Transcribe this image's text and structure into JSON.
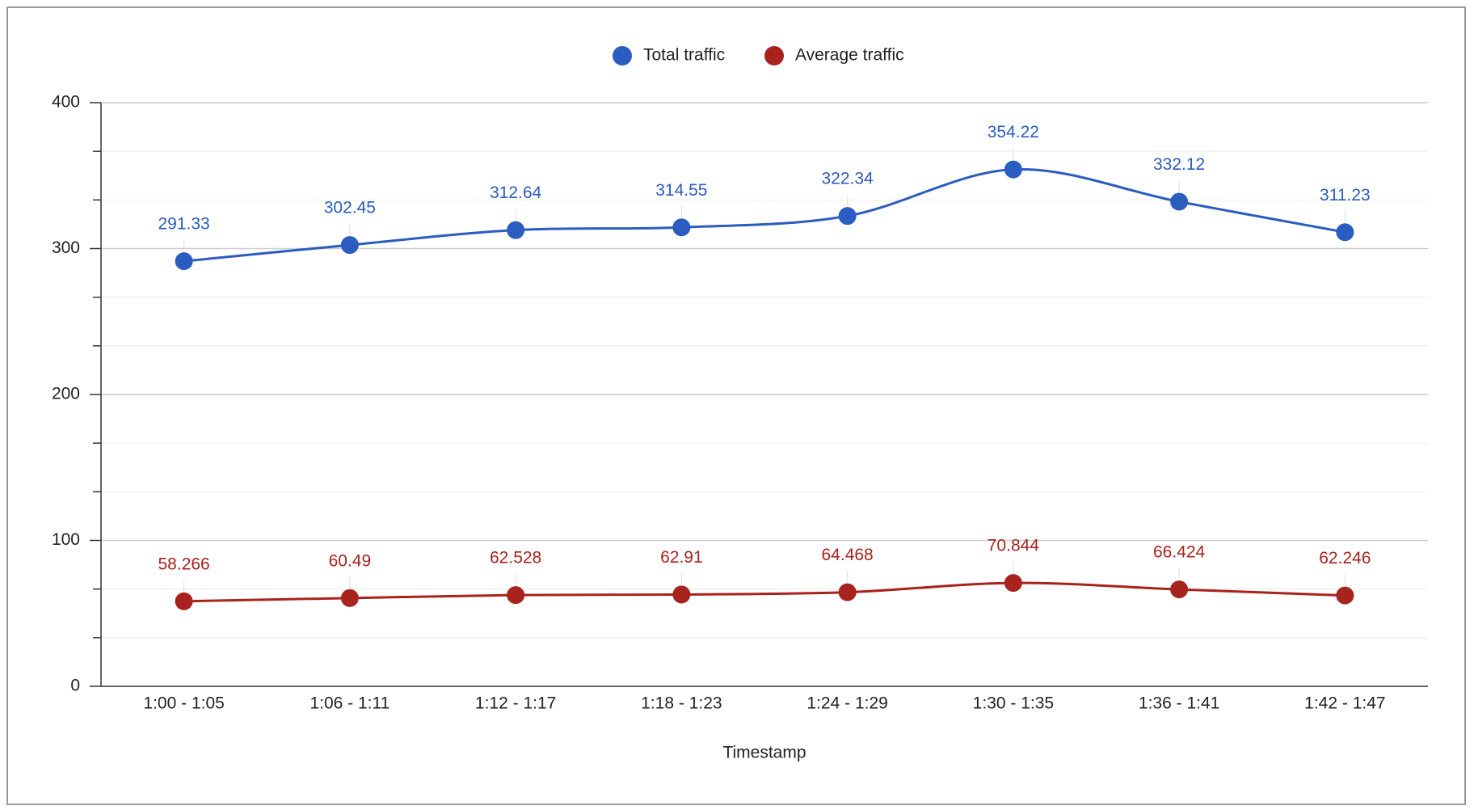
{
  "chart_data": {
    "type": "line",
    "x_label": "Timestamp",
    "categories": [
      "1:00 - 1:05",
      "1:06 - 1:11",
      "1:12 - 1:17",
      "1:18 - 1:23",
      "1:24 - 1:29",
      "1:30 - 1:35",
      "1:36 - 1:41",
      "1:42 - 1:47"
    ],
    "series": [
      {
        "name": "Total traffic",
        "color": "#2b5cbf",
        "values": [
          291.33,
          302.45,
          312.64,
          314.55,
          322.34,
          354.22,
          332.12,
          311.23
        ]
      },
      {
        "name": "Average traffic",
        "color": "#a8231d",
        "values": [
          58.266,
          60.49,
          62.528,
          62.91,
          64.468,
          70.844,
          66.424,
          62.246
        ]
      }
    ],
    "ylim": [
      0,
      400
    ],
    "yticks": [
      0,
      100,
      200,
      300,
      400
    ],
    "grid": true,
    "minor_grid_divisions": 3,
    "smooth": true,
    "legend": "top",
    "data_labels": true
  }
}
